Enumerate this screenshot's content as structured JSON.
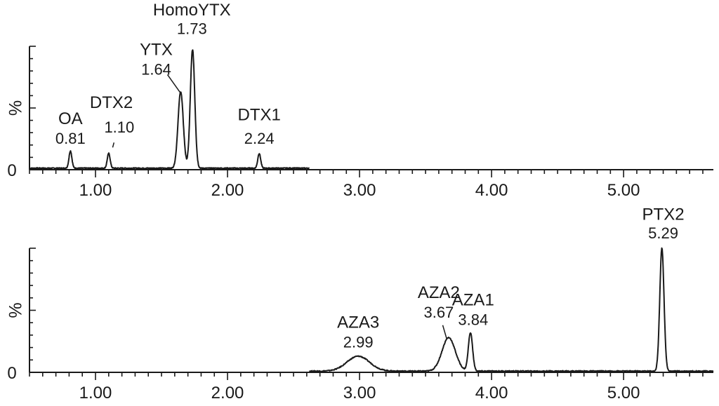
{
  "chart_data": [
    {
      "type": "line",
      "panel": "top",
      "ylabel": "%",
      "y_zero_label": "0",
      "xlim": [
        0.5,
        5.68
      ],
      "ylim": [
        0,
        100
      ],
      "x_ticks": [
        1.0,
        2.0,
        3.0,
        4.0,
        5.0
      ],
      "x_tick_labels": [
        "1.00",
        "2.00",
        "3.00",
        "4.00",
        "5.00"
      ],
      "x_minor_step": 0.1,
      "trace_range": [
        0.5,
        2.62
      ],
      "baseline": 1.2,
      "peaks": [
        {
          "name": "OA",
          "rt_label": "0.81",
          "rt": 0.81,
          "height": 14,
          "width": 0.011,
          "label_name_xy": [
            0.81,
            37
          ],
          "label_rt_xy": [
            0.81,
            21
          ]
        },
        {
          "name": "DTX2",
          "rt_label": "1.10",
          "rt": 1.1,
          "height": 12,
          "width": 0.011,
          "label_name_xy": [
            1.12,
            50
          ],
          "label_rt_xy": [
            1.18,
            30
          ],
          "leader": [
            1.13,
            18
          ]
        },
        {
          "name": "YTX",
          "rt_label": "1.64",
          "rt": 1.645,
          "height": 62,
          "width": 0.02,
          "label_name_xy": [
            1.46,
            93
          ],
          "label_rt_xy": [
            1.46,
            77
          ],
          "leader": [
            1.645,
            62
          ],
          "leader_from": [
            1.545,
            77
          ]
        },
        {
          "name": "HomoYTX",
          "rt_label": "1.73",
          "rt": 1.735,
          "height": 96,
          "width": 0.017,
          "label_name_xy": [
            1.73,
            125
          ],
          "label_rt_xy": [
            1.73,
            110
          ]
        },
        {
          "name": "DTX1",
          "rt_label": "2.24",
          "rt": 2.24,
          "height": 12,
          "width": 0.011,
          "label_name_xy": [
            2.24,
            40
          ],
          "label_rt_xy": [
            2.24,
            21
          ]
        }
      ]
    },
    {
      "type": "line",
      "panel": "bottom",
      "ylabel": "%",
      "y_zero_label": "0",
      "xlim": [
        0.5,
        5.68
      ],
      "ylim": [
        0,
        100
      ],
      "x_ticks": [
        1.0,
        2.0,
        3.0,
        4.0,
        5.0
      ],
      "x_tick_labels": [
        "1.00",
        "2.00",
        "3.00",
        "4.00",
        "5.00"
      ],
      "x_minor_step": 0.1,
      "trace_range": [
        2.62,
        5.68
      ],
      "baseline": 1.0,
      "peaks": [
        {
          "name": "AZA3",
          "rt_label": "2.99",
          "rt": 2.99,
          "height": 12,
          "width": 0.085,
          "label_name_xy": [
            2.99,
            36
          ],
          "label_rt_xy": [
            2.99,
            20
          ]
        },
        {
          "name": "AZA2",
          "rt_label": "3.67",
          "rt": 3.675,
          "height": 27,
          "width": 0.05,
          "label_name_xy": [
            3.6,
            60
          ],
          "label_rt_xy": [
            3.6,
            44
          ],
          "leader": [
            3.66,
            27
          ],
          "leader_from": [
            3.63,
            38
          ]
        },
        {
          "name": "AZA1",
          "rt_label": "3.84",
          "rt": 3.84,
          "height": 31,
          "width": 0.016,
          "label_name_xy": [
            3.86,
            54
          ],
          "label_rt_xy": [
            3.86,
            38
          ]
        },
        {
          "name": "PTX2",
          "rt_label": "5.29",
          "rt": 5.29,
          "height": 99,
          "width": 0.016,
          "label_name_xy": [
            5.3,
            123
          ],
          "label_rt_xy": [
            5.3,
            108
          ]
        }
      ]
    }
  ]
}
